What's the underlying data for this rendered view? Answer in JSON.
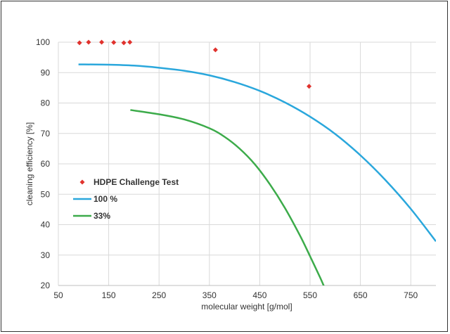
{
  "chart_data": {
    "type": "scatter",
    "title": "",
    "xlabel": "molecular weight [g/mol]",
    "ylabel": "cleaning efficiency [%]",
    "xlim": [
      50,
      800
    ],
    "ylim": [
      20,
      100
    ],
    "xticks": [
      50,
      150,
      250,
      350,
      450,
      550,
      650,
      750
    ],
    "yticks": [
      20,
      30,
      40,
      50,
      60,
      70,
      80,
      90,
      100
    ],
    "grid": true,
    "legend_position": "center-left",
    "series": [
      {
        "name": "HDPE Challenge Test",
        "kind": "scatter",
        "color": "#e0322d",
        "x": [
          92,
          110,
          136,
          160,
          180,
          192,
          362,
          548
        ],
        "y": [
          99.8,
          100,
          100,
          99.9,
          99.8,
          100,
          97.5,
          85.5
        ]
      },
      {
        "name": "100 %",
        "kind": "line",
        "color": "#2aa7dc",
        "x": [
          90,
          150,
          200,
          250,
          300,
          350,
          400,
          450,
          500,
          550,
          600,
          650,
          700,
          750,
          800
        ],
        "y": [
          92.7,
          92.6,
          92.3,
          91.6,
          90.6,
          89.1,
          86.9,
          84.0,
          80.2,
          75.5,
          69.8,
          62.8,
          54.6,
          45.2,
          34.5
        ]
      },
      {
        "name": "33%",
        "kind": "line",
        "color": "#3cab4a",
        "x": [
          193,
          250,
          300,
          350,
          380,
          410,
          440,
          470,
          500,
          530,
          550,
          570,
          580
        ],
        "y": [
          77.7,
          76.3,
          74.6,
          71.7,
          68.9,
          65.0,
          59.9,
          53.3,
          45.5,
          36.4,
          29.6,
          22.6,
          18.8
        ]
      }
    ]
  }
}
